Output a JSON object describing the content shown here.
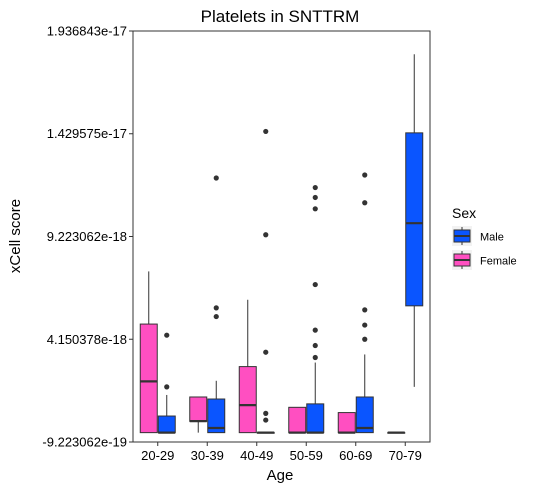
{
  "chart_data": {
    "type": "boxplot",
    "title": "Platelets in SNTTRM",
    "xlabel": "Age",
    "ylabel": "xCell score",
    "categories": [
      "20-29",
      "30-39",
      "40-49",
      "50-59",
      "60-69",
      "70-79"
    ],
    "y_tick_labels": [
      "-9.223062e-19",
      "4.150378e-18",
      "9.223062e-18",
      "1.429575e-17",
      "1.936843e-17"
    ],
    "y_tick_values": [
      -9.223062e-19,
      4.150378e-18,
      9.223062e-18,
      1.429575e-17,
      1.936843e-17
    ],
    "ylim": [
      -9.223062e-19,
      1.936843e-17
    ],
    "grid": false,
    "legend": {
      "title": "Sex",
      "position": "right",
      "entries": [
        "Male",
        "Female"
      ]
    },
    "series": [
      {
        "name": "Female",
        "color": "#FF4FC1",
        "boxes": [
          {
            "category": "20-29",
            "min": -4.6e-19,
            "q1": -4.6e-19,
            "median": 2.07e-18,
            "q3": 4.9e-18,
            "max": 7.5e-18,
            "outliers": []
          },
          {
            "category": "30-39",
            "min": -4.6e-19,
            "q1": 1e-19,
            "median": 1.1e-19,
            "q3": 1.3e-18,
            "max": 1.3e-18,
            "outliers": []
          },
          {
            "category": "40-49",
            "min": -4.6e-19,
            "q1": -4.6e-19,
            "median": 9e-19,
            "q3": 2.8e-18,
            "max": 6.1e-18,
            "outliers": []
          },
          {
            "category": "50-59",
            "min": -4.6e-19,
            "q1": -4.6e-19,
            "median": -4.6e-19,
            "q3": 7.9e-19,
            "max": 7.9e-19,
            "outliers": []
          },
          {
            "category": "60-69",
            "min": -4.6e-19,
            "q1": -4.6e-19,
            "median": -4.6e-19,
            "q3": 5.3e-19,
            "max": 5.3e-19,
            "outliers": []
          },
          {
            "category": "70-79",
            "min": -4.6e-19,
            "q1": -4.6e-19,
            "median": -4.6e-19,
            "q3": -4.6e-19,
            "max": -4.6e-19,
            "outliers": []
          }
        ]
      },
      {
        "name": "Male",
        "color": "#0A55FF",
        "boxes": [
          {
            "category": "20-29",
            "min": -4.6e-19,
            "q1": -4.6e-19,
            "median": -4.6e-19,
            "q3": 3.6e-19,
            "max": 1.4e-18,
            "outliers": [
              4.35e-18,
              1.8e-18
            ]
          },
          {
            "category": "30-39",
            "min": -4.6e-19,
            "q1": -4.6e-19,
            "median": -2.3e-19,
            "q3": 1.2e-18,
            "max": 2.1e-18,
            "outliers": [
              1.211e-17,
              5.7e-18,
              5.27e-18
            ]
          },
          {
            "category": "40-49",
            "min": -4.6e-19,
            "q1": -4.6e-19,
            "median": -4.6e-19,
            "q3": -4.6e-19,
            "max": -4.6e-19,
            "outliers": [
              1.441e-17,
              9.31e-18,
              3.51e-18,
              4.9e-19,
              1.6e-19
            ]
          },
          {
            "category": "50-59",
            "min": -4.6e-19,
            "q1": -4.6e-19,
            "median": -4.6e-19,
            "q3": 9.6e-19,
            "max": 3e-18,
            "outliers": [
              1.059e-17,
              1.164e-17,
              1.115e-17,
              6.85e-18,
              4.6e-18,
              3.84e-18,
              3.25e-18
            ]
          },
          {
            "category": "60-69",
            "min": -4.6e-19,
            "q1": -4.6e-19,
            "median": -2.3e-19,
            "q3": 1.3e-18,
            "max": 3.4e-18,
            "outliers": [
              1.226e-17,
              1.089e-17,
              5.6e-18,
              4.85e-18,
              4.15e-18
            ]
          },
          {
            "category": "70-79",
            "min": 1.8e-18,
            "q1": 5.8e-18,
            "median": 9.88e-18,
            "q3": 1.434e-17,
            "max": 1.822e-17,
            "outliers": []
          }
        ]
      }
    ]
  }
}
